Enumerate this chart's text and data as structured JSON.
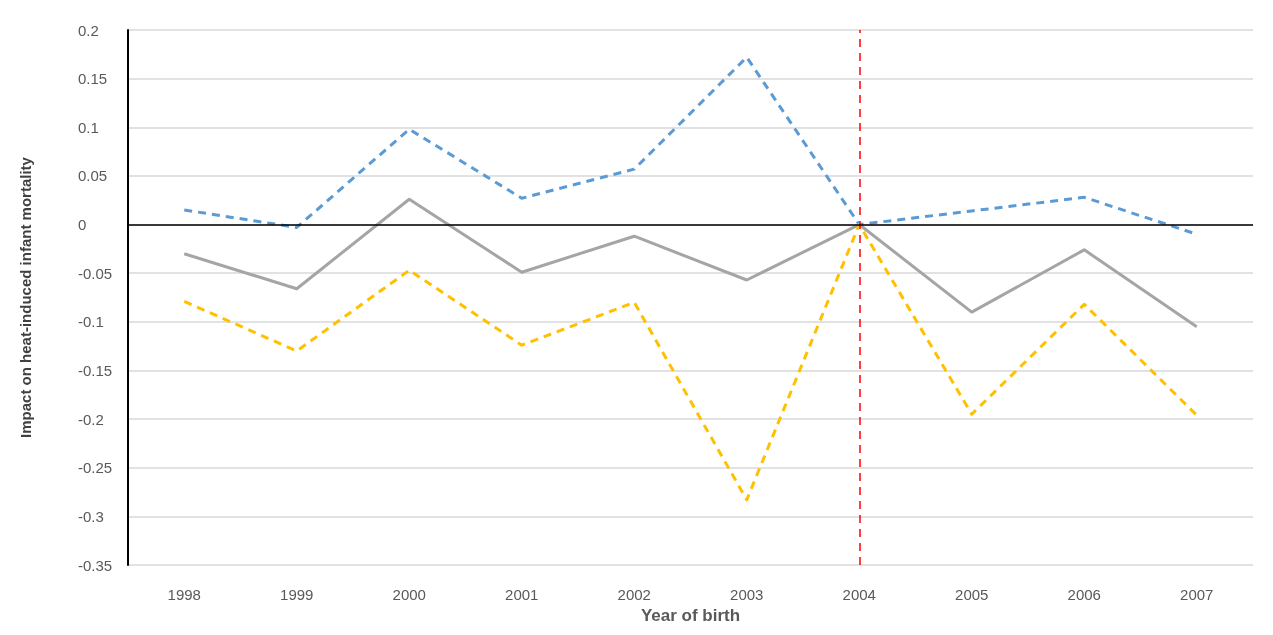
{
  "chart_data": {
    "type": "line",
    "xlabel": "Year of birth",
    "ylabel": "Impact on heat-induced infant mortality",
    "categories": [
      "1998",
      "1999",
      "2000",
      "2001",
      "2002",
      "2003",
      "2004",
      "2005",
      "2006",
      "2007"
    ],
    "series": [
      {
        "color": "#5b9bd5",
        "line_style": "dashed",
        "values": [
          0.015,
          -0.003,
          0.098,
          0.027,
          0.057,
          0.172,
          0,
          0.014,
          0.028,
          -0.01
        ]
      },
      {
        "color": "#a5a5a5",
        "line_style": "solid",
        "values": [
          -0.03,
          -0.066,
          0.026,
          -0.049,
          -0.012,
          -0.057,
          0,
          -0.09,
          -0.026,
          -0.105
        ]
      },
      {
        "color": "#ffc000",
        "line_style": "dashed",
        "values": [
          -0.079,
          -0.13,
          -0.047,
          -0.124,
          -0.08,
          -0.283,
          0,
          -0.195,
          -0.082,
          -0.196
        ]
      }
    ],
    "ylim": [
      -0.35,
      0.2
    ],
    "yticks": [
      -0.35,
      -0.3,
      -0.25,
      -0.2,
      -0.15,
      -0.1,
      -0.05,
      0,
      0.05,
      0.1,
      0.15,
      0.2
    ],
    "ref_lines": [
      {
        "axis": "x",
        "value": "2004",
        "color": "#ff0000",
        "line_style": "dashed"
      },
      {
        "axis": "y",
        "value": 0,
        "color": "#000000",
        "line_style": "solid"
      }
    ],
    "grid": "y",
    "marker": "none"
  }
}
